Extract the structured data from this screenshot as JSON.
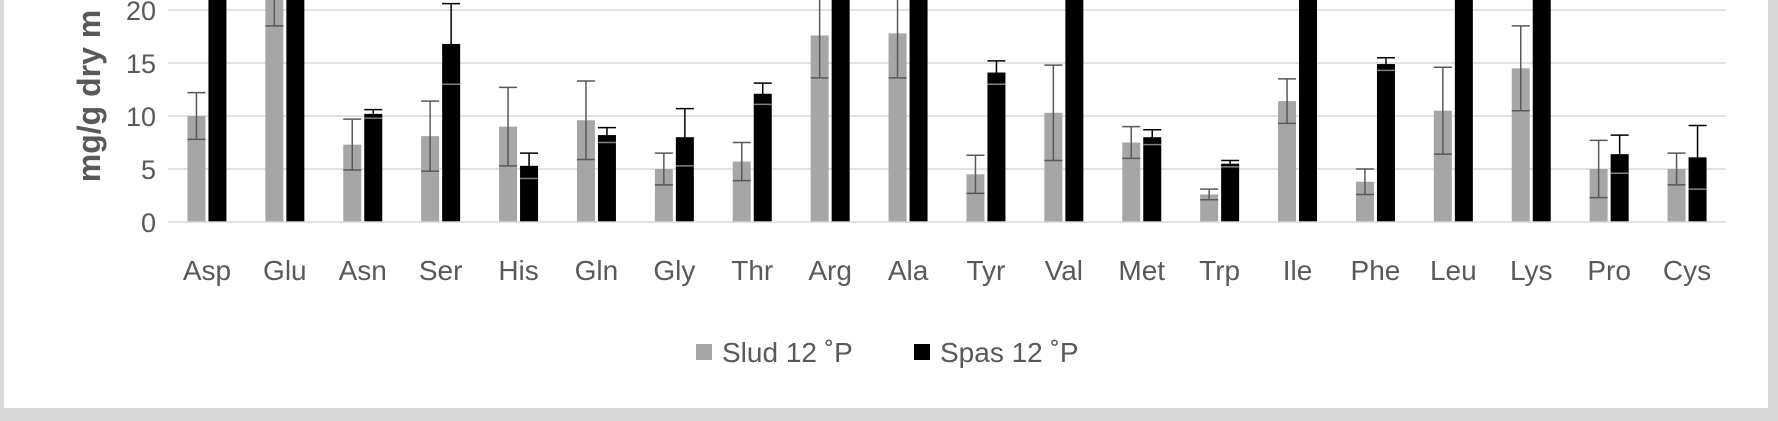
{
  "chart_data": {
    "type": "bar",
    "ylabel": "mg/g dry m",
    "ylim": [
      0,
      22
    ],
    "yticks": [
      0,
      5,
      10,
      15,
      20
    ],
    "grid": true,
    "legend_position": "bottom",
    "categories": [
      "Asp",
      "Glu",
      "Asn",
      "Ser",
      "His",
      "Gln",
      "Gly",
      "Thr",
      "Arg",
      "Ala",
      "Tyr",
      "Val",
      "Met",
      "Trp",
      "Ile",
      "Phe",
      "Leu",
      "Lys",
      "Pro",
      "Cys"
    ],
    "series": [
      {
        "name": "Slud 12 ˚P",
        "color": "#a6a6a6",
        "values": [
          10.0,
          21.5,
          7.3,
          8.1,
          9.0,
          9.6,
          5.0,
          5.7,
          17.6,
          17.8,
          4.5,
          10.3,
          7.5,
          2.6,
          11.4,
          3.8,
          10.5,
          14.5,
          5.0,
          5.0
        ],
        "errors": [
          2.2,
          3.0,
          2.4,
          3.3,
          3.7,
          3.7,
          1.5,
          1.8,
          4.0,
          4.2,
          1.8,
          4.5,
          1.5,
          0.5,
          2.1,
          1.2,
          4.1,
          4.0,
          2.7,
          1.5
        ]
      },
      {
        "name": "Spas 12 ˚P",
        "color": "#000000",
        "values": [
          22.0,
          22.0,
          10.2,
          16.8,
          5.3,
          8.2,
          8.0,
          12.1,
          22.0,
          22.0,
          14.1,
          22.0,
          8.0,
          5.5,
          22.0,
          14.9,
          22.0,
          22.0,
          6.4,
          6.1
        ],
        "errors": [
          0,
          0,
          0.4,
          3.8,
          1.2,
          0.7,
          2.7,
          1.0,
          0,
          0,
          1.1,
          0,
          0.7,
          0.3,
          0,
          0.6,
          0,
          0,
          1.8,
          3.0
        ]
      }
    ]
  }
}
